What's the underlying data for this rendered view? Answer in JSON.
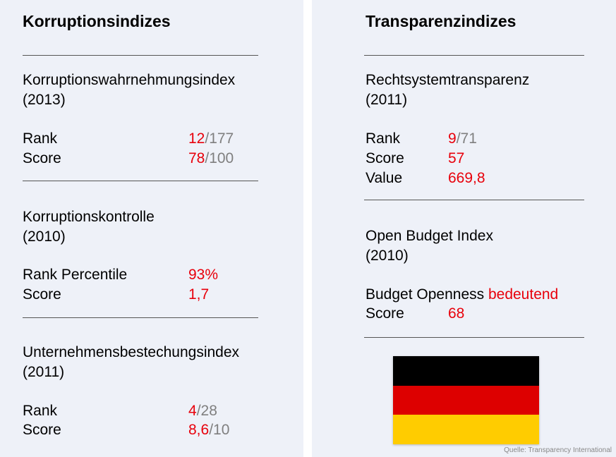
{
  "left": {
    "heading": "Korruptionsindizes",
    "cpi": {
      "title": "Korruptionswahrnehmungsindex",
      "year": "(2013)",
      "rank_label": "Rank",
      "rank_value": "12",
      "rank_total": "/177",
      "score_label": "Score",
      "score_value": "78",
      "score_total": "/100"
    },
    "control": {
      "title": "Korruptionskontrolle",
      "year": "(2010)",
      "percentile_label": "Rank Percentile",
      "percentile_value": "93%",
      "score_label": "Score",
      "score_value": "1,7"
    },
    "bribery": {
      "title": "Unternehmensbestechungsindex",
      "year": "(2011)",
      "rank_label": "Rank",
      "rank_value": "4",
      "rank_total": "/28",
      "score_label": "Score",
      "score_value": "8,6",
      "score_total": "/10"
    }
  },
  "right": {
    "heading": "Transparenzindizes",
    "legal": {
      "title": "Rechtsystemtransparenz",
      "year": "(2011)",
      "rank_label": "Rank",
      "rank_value": "9",
      "rank_total": "/71",
      "score_label": "Score",
      "score_value": "57",
      "value_label": "Value",
      "value_value": "669,8"
    },
    "budget": {
      "title": "Open Budget Index",
      "year": "(2010)",
      "openness_label": "Budget Openness",
      "openness_value": "bedeutend",
      "score_label": "Score",
      "score_value": "68"
    },
    "flag_colors": [
      "#000000",
      "#dd0000",
      "#ffcc00"
    ]
  },
  "source": "Quelle: Transparency International",
  "colors": {
    "highlight": "#e8000b",
    "muted": "#7f7f7f",
    "panel": "#eef1f8"
  }
}
